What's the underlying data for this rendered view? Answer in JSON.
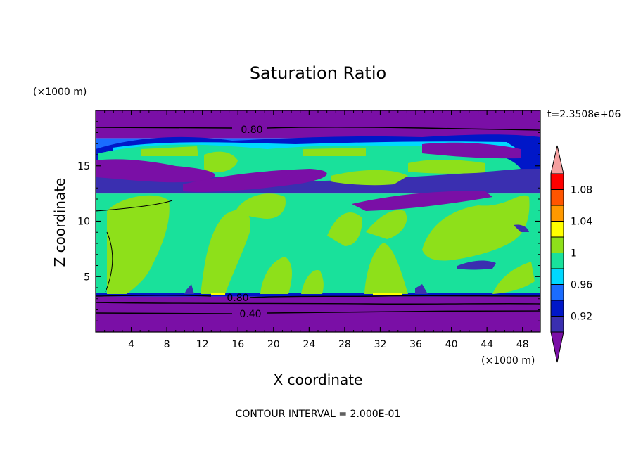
{
  "chart_data": {
    "type": "heatmap",
    "title": "Saturation Ratio",
    "xlabel": "X coordinate",
    "ylabel": "Z coordinate",
    "x_unit": "(×1000 m)",
    "y_unit": "(×1000 m)",
    "time_label": "t=2.3508e+06",
    "footer": "CONTOUR INTERVAL = 2.000E-01",
    "xlim": [
      0,
      50
    ],
    "ylim": [
      0,
      20
    ],
    "x_ticks": [
      4,
      8,
      12,
      16,
      20,
      24,
      28,
      32,
      36,
      40,
      44,
      48
    ],
    "y_ticks": [
      5,
      10,
      15
    ],
    "colorbar": {
      "levels": [
        0.92,
        0.94,
        0.96,
        0.98,
        1.0,
        1.02,
        1.04,
        1.06,
        1.08,
        1.1
      ],
      "tick_labels": [
        "0.92",
        "0.96",
        "1",
        "1.04",
        "1.08"
      ],
      "colors": [
        "#7a0fa6",
        "#3a2fb0",
        "#0017c8",
        "#1a6cff",
        "#00d8ff",
        "#19e19b",
        "#8ee01a",
        "#ffff00",
        "#ff9900",
        "#ff5500",
        "#ff0000",
        "#f5a0a0"
      ]
    },
    "contour_labels": [
      {
        "text": "0.80",
        "x": 17.5,
        "z": 18.2
      },
      {
        "text": "0.80",
        "x": 16.0,
        "z": 2.9
      },
      {
        "text": "0.40",
        "x": 17.0,
        "z": 1.7
      }
    ],
    "bands": [
      {
        "z_min": 0.0,
        "z_max": 3.2,
        "value": 0.8
      },
      {
        "z_min": 3.2,
        "z_max": 3.5,
        "value": 0.92
      },
      {
        "z_min": 3.5,
        "z_max": 12.5,
        "value": 1.0
      },
      {
        "z_min": 12.5,
        "z_max": 15.5,
        "value": 0.9
      },
      {
        "z_min": 15.5,
        "z_max": 17.5,
        "value": 0.96
      },
      {
        "z_min": 17.5,
        "z_max": 20.0,
        "value": 0.8
      }
    ],
    "grid": false
  }
}
